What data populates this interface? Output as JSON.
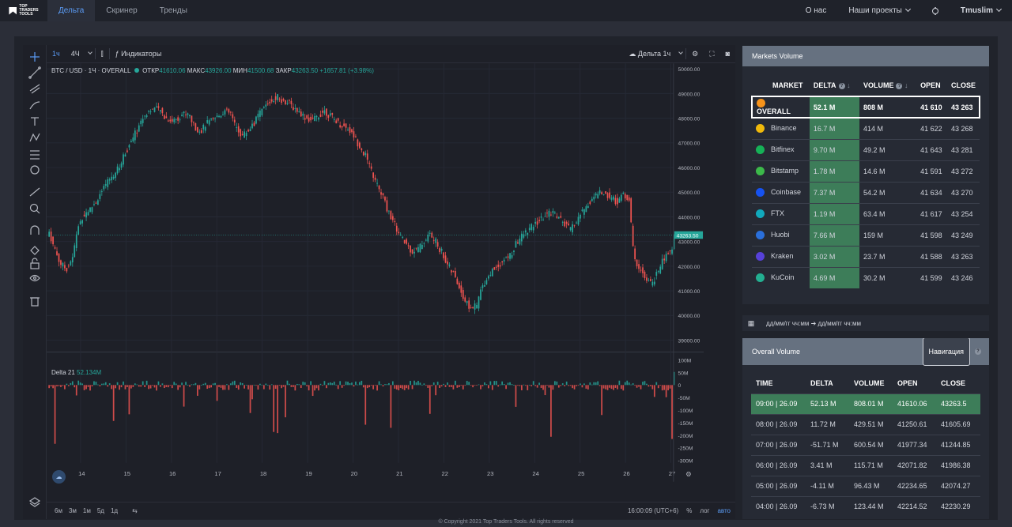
{
  "nav": {
    "logo": "TOP\nTRADERS\nTOOLS",
    "tabs": [
      "Дельта",
      "Скринер",
      "Тренды"
    ],
    "about": "О нас",
    "projects": "Наши проекты",
    "user": "Tmuslim"
  },
  "toolbar": {
    "interval_1h": "1ч",
    "interval_4h": "4Ч",
    "indicators": "Индикаторы",
    "layout": "Дельта 1ч"
  },
  "legend": {
    "symbol": "BTC / USD · 1Ч · OVERALL",
    "open_label": "ОТКР",
    "open": "41610.06",
    "high_label": "МАКС",
    "high": "43926.00",
    "low_label": "МИН",
    "low": "41500.68",
    "close_label": "ЗАКР",
    "close": "43263.50",
    "change": "+1657.81 (+3.98%)",
    "current_price_tag": "43263.50"
  },
  "volume_legend": {
    "name": "Delta 21",
    "value": "52.134M"
  },
  "bottombar": {
    "ranges": [
      "6м",
      "3м",
      "1м",
      "5д",
      "1д"
    ],
    "time": "16:00:09 (UTC+6)",
    "percent": "%",
    "log": "лог",
    "auto": "авто"
  },
  "colors": {
    "up": "#26a69a",
    "down": "#ef5350",
    "accent": "#5b9cf6",
    "delta_bg": "#3d7d59"
  },
  "chart_data": {
    "type": "candlestick",
    "x_ticks": [
      "14",
      "15",
      "16",
      "17",
      "18",
      "19",
      "20",
      "21",
      "22",
      "23",
      "24",
      "25",
      "26",
      "27"
    ],
    "y_ticks": [
      "50000.00",
      "49000.00",
      "48000.00",
      "47000.00",
      "46000.00",
      "45000.00",
      "44000.00",
      "43000.00",
      "42000.00",
      "41000.00",
      "40000.00",
      "39000.00"
    ],
    "ylim": [
      38700,
      50100
    ],
    "close_series": [
      43400,
      42700,
      42100,
      41900,
      42300,
      43600,
      44100,
      44300,
      44600,
      45000,
      45400,
      45700,
      46000,
      46600,
      47000,
      47500,
      48000,
      48300,
      48400,
      48300,
      48000,
      47900,
      48000,
      48200,
      48100,
      47600,
      47500,
      47800,
      47900,
      48100,
      48300,
      48200,
      47600,
      47300,
      47500,
      47800,
      48200,
      48500,
      48700,
      48900,
      48700,
      48600,
      48400,
      48200,
      48000,
      47900,
      48100,
      48300,
      48100,
      47900,
      47700,
      47600,
      47300,
      46900,
      46500,
      45900,
      45300,
      44800,
      44200,
      43700,
      43200,
      42900,
      42600,
      42700,
      43000,
      43300,
      43000,
      42600,
      42100,
      41700,
      41200,
      40600,
      40300,
      40400,
      41200,
      41600,
      41900,
      42100,
      42300,
      42500,
      43000,
      43300,
      43500,
      43700,
      43900,
      44100,
      44200,
      44000,
      43700,
      43500,
      43800,
      44200,
      44500,
      44800,
      45000,
      44900,
      44800,
      44600,
      44900,
      44700,
      42200,
      41900,
      41400,
      41300,
      41800,
      42300,
      42600,
      42800,
      42700,
      42800,
      42700,
      42600,
      42500,
      42700,
      42600,
      42700,
      42600,
      42800,
      42500,
      42400,
      42300,
      42100,
      41900,
      41600,
      43263.5
    ],
    "volume_delta_ylim": [
      -310,
      110
    ],
    "volume_delta_ticks": [
      "100M",
      "50M",
      "0",
      "-50M",
      "-100M",
      "-150M",
      "-200M",
      "-250M",
      "-300M"
    ]
  },
  "markets": {
    "title": "Markets Volume",
    "headers": [
      "MARKET",
      "DELTA",
      "VOLUME",
      "OPEN",
      "CLOSE"
    ],
    "rows": [
      {
        "name": "OVERALL",
        "delta": "52.1 M",
        "volume": "808 M",
        "open": "41 610",
        "close": "43 263",
        "color": "#f7931a"
      },
      {
        "name": "Binance",
        "delta": "16.7 M",
        "volume": "414 M",
        "open": "41 622",
        "close": "43 268",
        "color": "#f0b90b"
      },
      {
        "name": "Bitfinex",
        "delta": "9.70 M",
        "volume": "49.2 M",
        "open": "41 643",
        "close": "43 281",
        "color": "#16b157"
      },
      {
        "name": "Bitstamp",
        "delta": "1.78 M",
        "volume": "14.6 M",
        "open": "41 591",
        "close": "43 272",
        "color": "#3cb94a"
      },
      {
        "name": "Coinbase",
        "delta": "7.37 M",
        "volume": "54.2 M",
        "open": "41 634",
        "close": "43 270",
        "color": "#1652f0"
      },
      {
        "name": "FTX",
        "delta": "1.19 M",
        "volume": "63.4 M",
        "open": "41 617",
        "close": "43 254",
        "color": "#11a9bc"
      },
      {
        "name": "Huobi",
        "delta": "7.66 M",
        "volume": "159 M",
        "open": "41 598",
        "close": "43 249",
        "color": "#2a6fdb"
      },
      {
        "name": "Kraken",
        "delta": "3.02 M",
        "volume": "23.7 M",
        "open": "41 588",
        "close": "43 263",
        "color": "#5741d9"
      },
      {
        "name": "KuCoin",
        "delta": "4.69 M",
        "volume": "30.2 M",
        "open": "41 599",
        "close": "43 246",
        "color": "#23af91"
      }
    ]
  },
  "date_range": "дд/мм/гг чч:мм ➔ дд/мм/гг чч:мм",
  "overall": {
    "title": "Overall Volume",
    "nav_button": "Навигация",
    "headers": [
      "TIME",
      "DELTA",
      "VOLUME",
      "OPEN",
      "CLOSE"
    ],
    "rows": [
      {
        "time": "09:00 | 26.09",
        "delta": "52.13 M",
        "volume": "808.01 M",
        "open": "41610.06",
        "close": "43263.5"
      },
      {
        "time": "08:00 | 26.09",
        "delta": "11.72 M",
        "volume": "429.51 M",
        "open": "41250.61",
        "close": "41605.69"
      },
      {
        "time": "07:00 | 26.09",
        "delta": "-51.71 M",
        "volume": "600.54 M",
        "open": "41977.34",
        "close": "41244.85"
      },
      {
        "time": "06:00 | 26.09",
        "delta": "3.41 M",
        "volume": "115.71 M",
        "open": "42071.82",
        "close": "41986.38"
      },
      {
        "time": "05:00 | 26.09",
        "delta": "-4.11 M",
        "volume": "96.43 M",
        "open": "42234.65",
        "close": "42074.27"
      },
      {
        "time": "04:00 | 26.09",
        "delta": "-6.73 M",
        "volume": "123.44 M",
        "open": "42214.52",
        "close": "42230.29"
      }
    ]
  },
  "footer": "© Copyright 2021 Top Traders Tools. All rights reserved"
}
